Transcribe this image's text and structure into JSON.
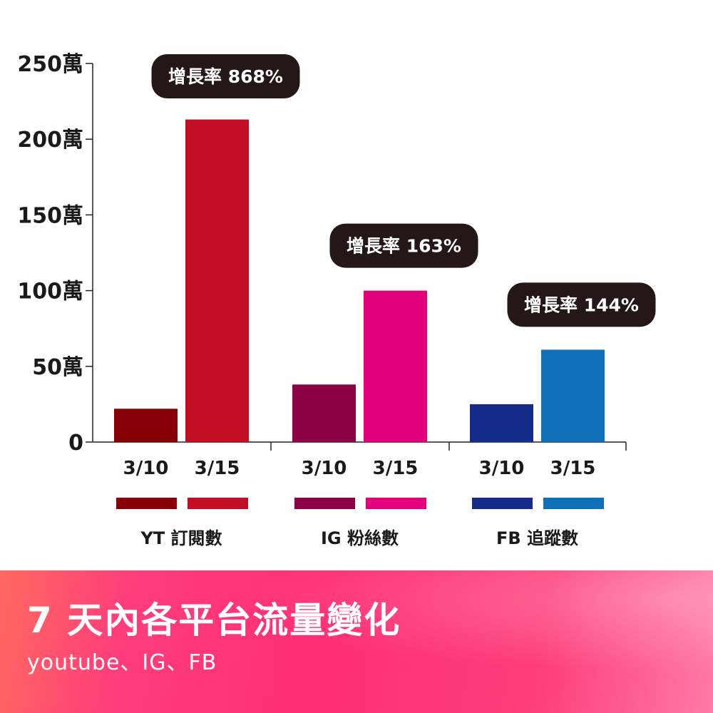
{
  "chart_data": {
    "type": "bar",
    "y_ticks": [
      "250萬",
      "200萬",
      "150萬",
      "100萬",
      "50萬",
      "0"
    ],
    "ylim": [
      0,
      250
    ],
    "y_unit": "萬",
    "groups": [
      {
        "label": "YT 訂閱數",
        "growth_label": "增長率 868%",
        "bars": [
          {
            "date": "3/10",
            "value": 22,
            "color": "#870008"
          },
          {
            "date": "3/15",
            "value": 213,
            "color": "#c20e24"
          }
        ]
      },
      {
        "label": "IG 粉絲數",
        "growth_label": "增長率 163%",
        "bars": [
          {
            "date": "3/10",
            "value": 38,
            "color": "#8c0048"
          },
          {
            "date": "3/15",
            "value": 100,
            "color": "#e3007d"
          }
        ]
      },
      {
        "label": "FB 追蹤數",
        "growth_label": "增長率 144%",
        "bars": [
          {
            "date": "3/10",
            "value": 25,
            "color": "#152b8a"
          },
          {
            "date": "3/15",
            "value": 61,
            "color": "#0f70b8"
          }
        ]
      }
    ],
    "bubble_color": "#231815",
    "grid": false
  },
  "banner": {
    "title": "7 天內各平台流量變化",
    "subtitle": "youtube、IG、FB"
  }
}
